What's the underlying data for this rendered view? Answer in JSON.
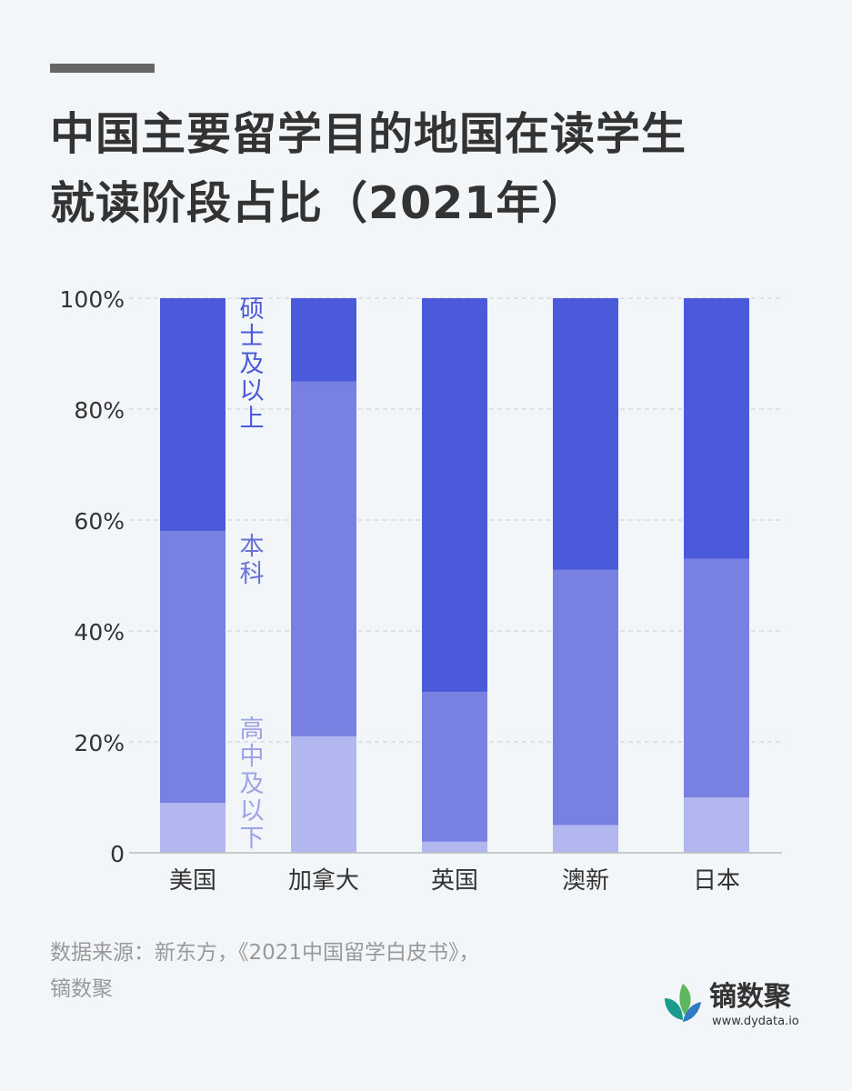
{
  "title": {
    "line1": "中国主要留学目的地国在读学生",
    "line2": "就读阶段占比（2021年）"
  },
  "chart_data": {
    "type": "bar",
    "stacked": true,
    "categories": [
      "美国",
      "加拿大",
      "英国",
      "澳新",
      "日本"
    ],
    "series": [
      {
        "name": "高中及以下",
        "values": [
          9,
          21,
          2,
          5,
          10
        ],
        "color": "#b3b7ef"
      },
      {
        "name": "本科",
        "values": [
          49,
          64,
          27,
          46,
          43
        ],
        "color": "#7880e1"
      },
      {
        "name": "硕士及以上",
        "values": [
          42,
          15,
          71,
          49,
          47
        ],
        "color": "#4a5adb"
      }
    ],
    "yticks": [
      "0",
      "20%",
      "40%",
      "60%",
      "80%",
      "100%"
    ],
    "ylim": [
      0,
      100
    ],
    "grid": true,
    "legend": "inline-vertical-labels"
  },
  "source": {
    "line1": "数据来源：新东方，《2021中国留学白皮书》，",
    "line2": "镝数聚"
  },
  "brand": {
    "name": "镝数聚",
    "url": "www.dydata.io"
  }
}
